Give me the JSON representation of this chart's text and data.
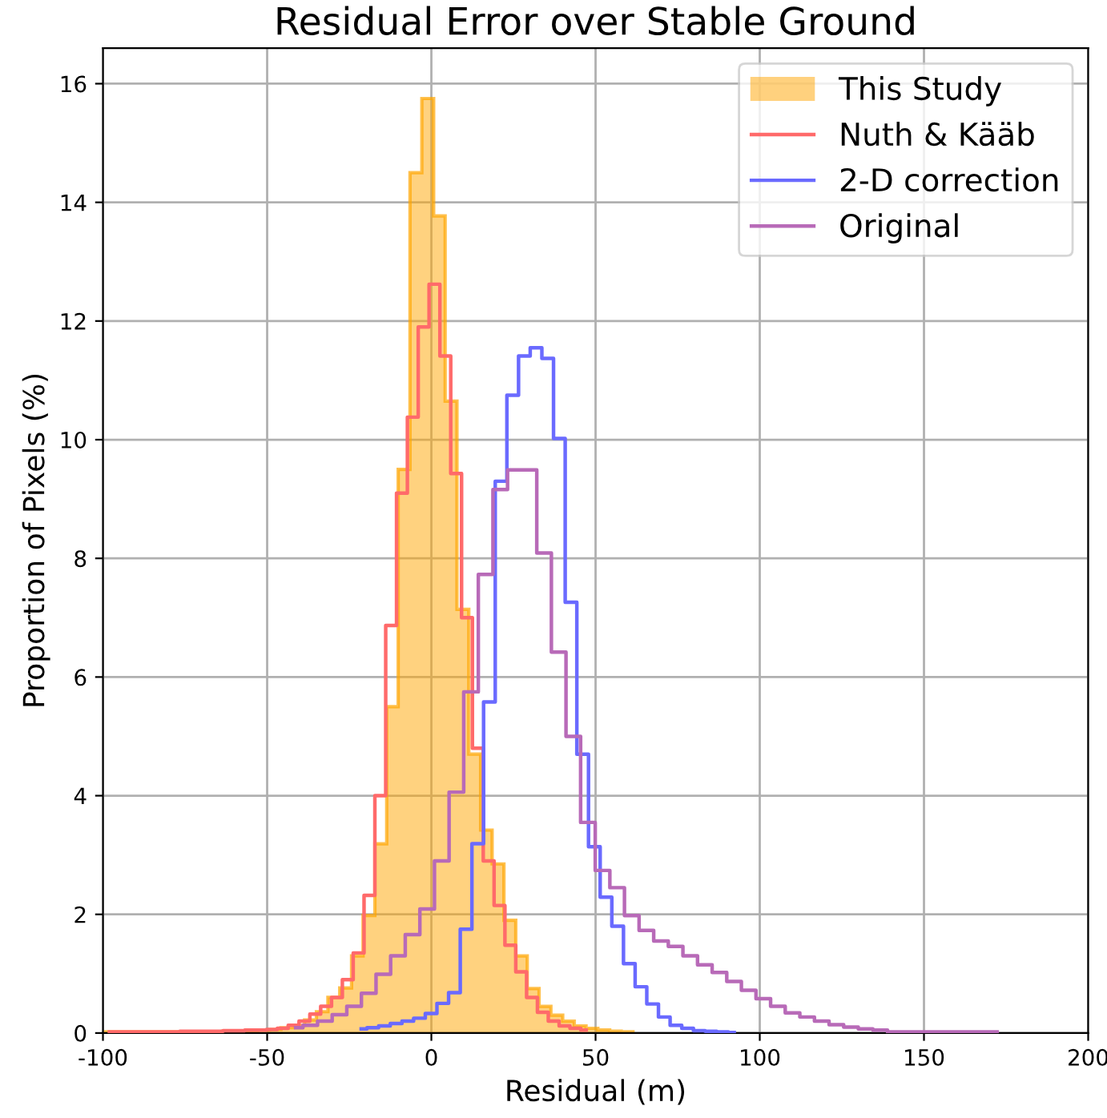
{
  "chart_data": {
    "type": "histogram",
    "title": "Residual Error over Stable Ground",
    "xlabel": "Residual (m)",
    "ylabel": "Proportion of Pixels (%)",
    "xlim": [
      -100,
      200
    ],
    "xticks": [
      -100,
      -50,
      0,
      50,
      100,
      150,
      200
    ],
    "ylim": [
      0,
      16.6
    ],
    "yticks": [
      0,
      2,
      4,
      6,
      8,
      10,
      12,
      14,
      16
    ],
    "grid": true,
    "legend": "top right",
    "bins": [
      -99.3,
      -95.7,
      -92.2,
      -88.6,
      -85.0,
      -81.5,
      -77.9,
      -74.3,
      -70.7,
      -67.2,
      -63.6,
      -60.0,
      -56.5,
      -52.9,
      -49.3,
      -45.8,
      -42.2,
      -38.6,
      -35.0,
      -31.5,
      -27.9,
      -24.3,
      -20.8,
      -17.2,
      -13.6,
      -10.1,
      -6.5,
      -2.9,
      0.7,
      4.2,
      7.8,
      11.4,
      15.0,
      18.5,
      22.1,
      25.7,
      29.2,
      32.8,
      36.4,
      40.0,
      43.5,
      47.1,
      50.7,
      54.3,
      57.8,
      61.4
    ],
    "series": [
      {
        "name": "This Study",
        "color": "#ffa500",
        "values": [
          0.02,
          0.02,
          0.02,
          0.02,
          0.02,
          0.02,
          0.02,
          0.02,
          0.02,
          0.02,
          0.03,
          0.03,
          0.04,
          0.05,
          0.06,
          0.09,
          0.13,
          0.22,
          0.36,
          0.6,
          0.76,
          1.3,
          1.98,
          3.19,
          5.5,
          9.5,
          14.5,
          15.75,
          13.77,
          10.65,
          7.14,
          4.7,
          3.42,
          2.85,
          1.9,
          1.3,
          0.75,
          0.45,
          0.3,
          0.2,
          0.12,
          0.08,
          0.05,
          0.03,
          0.02
        ]
      },
      {
        "name": "Nuth & Kääb",
        "type": "step",
        "color": "#ff6a6a",
        "x": [
          -98.05,
          -94.75,
          -91.45,
          -88.15,
          -84.85,
          -81.55,
          -78.25,
          -74.95,
          -71.65,
          -68.35,
          -65.05,
          -61.75,
          -58.45,
          -55.15,
          -51.85,
          -48.55,
          -45.25,
          -41.95,
          -38.65,
          -35.35,
          -32.05,
          -28.75,
          -25.45,
          -22.15,
          -18.85,
          -15.55,
          -12.25,
          -8.95,
          -5.65,
          -2.35,
          0.95,
          4.25,
          7.55,
          10.85,
          14.15,
          17.45,
          20.75,
          24.05,
          27.35,
          30.65,
          33.95,
          37.25,
          40.55,
          43.85,
          47.15
        ],
        "values": [
          0.02,
          0.02,
          0.02,
          0.02,
          0.02,
          0.02,
          0.02,
          0.03,
          0.03,
          0.03,
          0.03,
          0.04,
          0.04,
          0.05,
          0.05,
          0.06,
          0.08,
          0.13,
          0.2,
          0.32,
          0.45,
          0.6,
          0.9,
          1.35,
          2.32,
          4.0,
          6.87,
          9.1,
          10.38,
          11.9,
          12.62,
          11.41,
          9.43,
          7.0,
          4.8,
          2.9,
          2.15,
          1.48,
          1.03,
          0.6,
          0.35,
          0.2,
          0.12,
          0.08,
          0.05
        ]
      },
      {
        "name": "2-D correction",
        "type": "step",
        "color": "#6a6aff",
        "x": [
          -21.375,
          -17.825,
          -14.275,
          -10.725,
          -7.175,
          -3.625,
          -0.075,
          3.475,
          7.025,
          10.575,
          14.125,
          17.675,
          21.225,
          24.775,
          28.325,
          31.875,
          35.425,
          38.975,
          42.525,
          46.075,
          49.625,
          53.175,
          56.725,
          60.275,
          63.825,
          67.375,
          70.925,
          74.475,
          78.025,
          81.575,
          85.125,
          88.675,
          92.225
        ],
        "values": [
          0.07,
          0.09,
          0.12,
          0.16,
          0.2,
          0.25,
          0.33,
          0.5,
          0.68,
          1.75,
          3.19,
          5.58,
          9.3,
          10.75,
          11.41,
          11.55,
          11.37,
          10.02,
          7.26,
          4.7,
          3.14,
          2.29,
          1.8,
          1.17,
          0.78,
          0.49,
          0.27,
          0.13,
          0.08,
          0.04,
          0.03,
          0.02,
          0.01
        ]
      },
      {
        "name": "Original",
        "type": "step",
        "color": "#b86ab8",
        "x": [
          -41.325,
          -36.875,
          -32.425,
          -27.975,
          -23.525,
          -19.075,
          -14.625,
          -10.175,
          -5.725,
          -1.275,
          3.175,
          7.625,
          12.075,
          16.525,
          20.975,
          25.425,
          29.875,
          34.325,
          38.775,
          43.225,
          47.675,
          52.125,
          56.575,
          61.025,
          65.475,
          69.925,
          74.375,
          78.825,
          83.275,
          87.725,
          92.175,
          96.625,
          101.075,
          105.525,
          109.975,
          114.425,
          118.875,
          123.325,
          127.775,
          132.225,
          136.675,
          141.125,
          145.575,
          150.025,
          154.475,
          158.925,
          163.375,
          167.825,
          172.275
        ],
        "values": [
          0.09,
          0.13,
          0.2,
          0.31,
          0.45,
          0.67,
          0.99,
          1.3,
          1.66,
          2.09,
          2.9,
          4.06,
          5.75,
          7.73,
          9.16,
          9.49,
          9.49,
          8.09,
          6.42,
          5.0,
          3.55,
          2.74,
          2.45,
          1.98,
          1.73,
          1.55,
          1.46,
          1.3,
          1.15,
          1.02,
          0.87,
          0.72,
          0.58,
          0.45,
          0.34,
          0.27,
          0.2,
          0.14,
          0.1,
          0.07,
          0.05,
          0.02,
          0.02,
          0.02,
          0.02,
          0.02,
          0.02,
          0.02,
          0.02
        ]
      }
    ]
  }
}
